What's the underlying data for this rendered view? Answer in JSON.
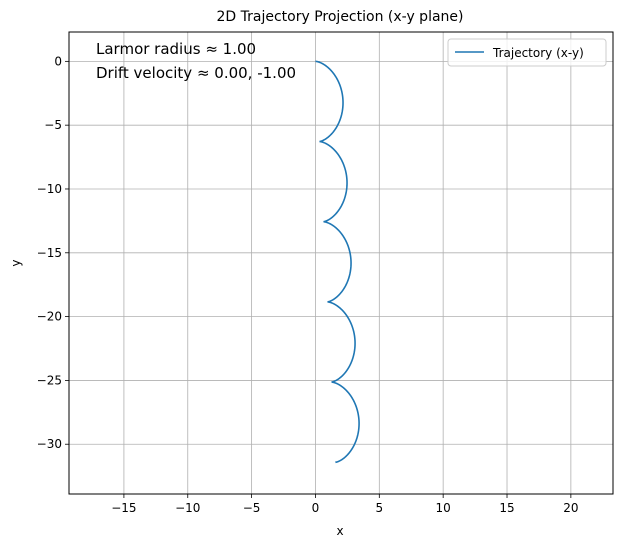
{
  "chart_data": {
    "type": "line",
    "title": "2D Trajectory Projection (x-y plane)",
    "xlabel": "x",
    "ylabel": "y",
    "xlim": [
      -19.3,
      23.3
    ],
    "ylim": [
      -33.9,
      2.3
    ],
    "xticks": [
      -15,
      -10,
      -5,
      0,
      5,
      10,
      15,
      20
    ],
    "yticks": [
      0,
      -5,
      -10,
      -15,
      -20,
      -25,
      -30
    ],
    "xtick_labels": [
      "−15",
      "−10",
      "−5",
      "0",
      "5",
      "10",
      "15",
      "20"
    ],
    "ytick_labels": [
      "0",
      "−5",
      "−10",
      "−15",
      "−20",
      "−25",
      "−30"
    ],
    "grid": true,
    "legend": {
      "position": "upper right",
      "entries": [
        "Trajectory (x-y)"
      ]
    },
    "annotations": [
      "Larmor radius ≈ 1.00",
      "Drift velocity ≈ 0.00, -1.00"
    ],
    "series": [
      {
        "name": "Trajectory (x-y)",
        "color": "#1f77b4",
        "t_max": 31.6,
        "x": "1 - cos(t) + 0.05*t",
        "y": "sin(t) - 1*t"
      }
    ]
  }
}
